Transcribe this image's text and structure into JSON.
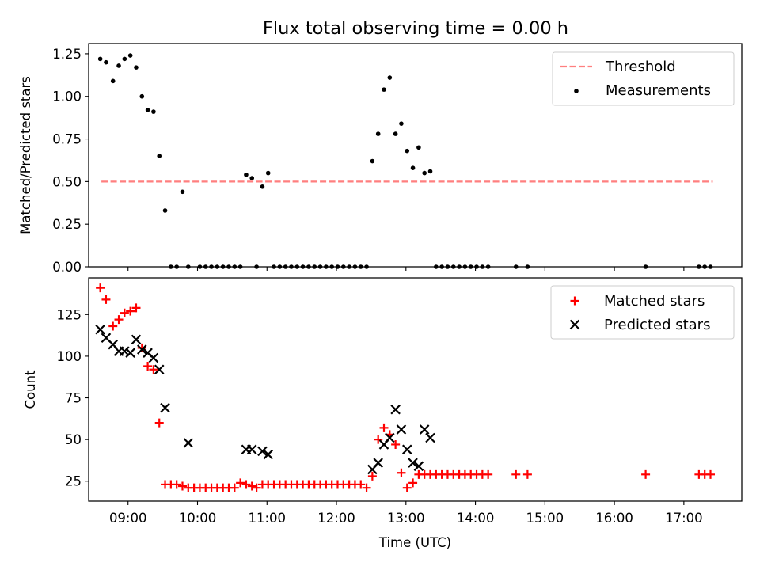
{
  "chart_data": [
    {
      "type": "scatter",
      "title": "Flux total observing time = 0.00 h",
      "xlabel": "",
      "ylabel": "Matched/Predicted stars",
      "xlim": [
        "08:26",
        "17:50"
      ],
      "ylim": [
        0,
        1.31
      ],
      "y_ticks": [
        "0.00",
        "0.25",
        "0.50",
        "0.75",
        "1.00",
        "1.25"
      ],
      "legend_position": "top-right",
      "grid": false,
      "threshold": {
        "name": "Threshold",
        "value": 0.5,
        "x_range": [
          "08:37",
          "17:25"
        ],
        "color": "#ff7f7f",
        "style": "dashed"
      },
      "series": [
        {
          "name": "Measurements",
          "color": "#000000",
          "marker": "dot",
          "x": [
            "08:36",
            "08:41",
            "08:47",
            "08:52",
            "08:57",
            "09:02",
            "09:07",
            "09:12",
            "09:17",
            "09:22",
            "09:27",
            "09:32",
            "09:37",
            "09:42",
            "09:47",
            "09:52",
            "10:02",
            "10:07",
            "10:12",
            "10:17",
            "10:22",
            "10:27",
            "10:32",
            "10:37",
            "10:42",
            "10:47",
            "10:51",
            "10:56",
            "11:01",
            "11:06",
            "11:11",
            "11:16",
            "11:21",
            "11:26",
            "11:31",
            "11:36",
            "11:41",
            "11:46",
            "11:51",
            "11:56",
            "12:01",
            "12:06",
            "12:11",
            "12:16",
            "12:21",
            "12:26",
            "12:31",
            "12:36",
            "12:41",
            "12:46",
            "12:51",
            "12:56",
            "13:01",
            "13:06",
            "13:11",
            "13:16",
            "13:21",
            "13:26",
            "13:31",
            "13:36",
            "13:41",
            "13:46",
            "13:51",
            "13:56",
            "14:01",
            "14:06",
            "14:11",
            "14:35",
            "14:45",
            "16:27",
            "17:13",
            "17:18",
            "17:23"
          ],
          "y": [
            1.22,
            1.2,
            1.09,
            1.18,
            1.22,
            1.24,
            1.17,
            1.0,
            0.92,
            0.91,
            0.65,
            0.33,
            0.0,
            0.0,
            0.44,
            0.0,
            0.0,
            0.0,
            0.0,
            0.0,
            0.0,
            0.0,
            0.0,
            0.0,
            0.54,
            0.52,
            0.0,
            0.47,
            0.55,
            0.0,
            0.0,
            0.0,
            0.0,
            0.0,
            0.0,
            0.0,
            0.0,
            0.0,
            0.0,
            0.0,
            0.0,
            0.0,
            0.0,
            0.0,
            0.0,
            0.0,
            0.62,
            0.78,
            1.04,
            1.11,
            0.78,
            0.84,
            0.68,
            0.58,
            0.7,
            0.55,
            0.56,
            0.0,
            0.0,
            0.0,
            0.0,
            0.0,
            0.0,
            0.0,
            0.0,
            0.0,
            0.0,
            0.0,
            0.0,
            0.0,
            0.0,
            0.0,
            0.0
          ]
        }
      ]
    },
    {
      "type": "scatter",
      "title": "",
      "xlabel": "Time (UTC)",
      "ylabel": "Count",
      "xlim": [
        "08:26",
        "17:50"
      ],
      "ylim": [
        13,
        147
      ],
      "y_ticks": [
        "25",
        "50",
        "75",
        "100",
        "125"
      ],
      "x_ticks": [
        "09:00",
        "10:00",
        "11:00",
        "12:00",
        "13:00",
        "14:00",
        "15:00",
        "16:00",
        "17:00"
      ],
      "legend_position": "top-right",
      "grid": false,
      "series": [
        {
          "name": "Matched stars",
          "color": "#ff0000",
          "marker": "plus",
          "x": [
            "08:36",
            "08:41",
            "08:47",
            "08:52",
            "08:57",
            "09:02",
            "09:07",
            "09:12",
            "09:17",
            "09:22",
            "09:27",
            "09:32",
            "09:37",
            "09:42",
            "09:47",
            "09:52",
            "09:57",
            "10:02",
            "10:07",
            "10:12",
            "10:17",
            "10:22",
            "10:27",
            "10:32",
            "10:37",
            "10:42",
            "10:47",
            "10:51",
            "10:56",
            "11:01",
            "11:06",
            "11:11",
            "11:16",
            "11:21",
            "11:26",
            "11:31",
            "11:36",
            "11:41",
            "11:46",
            "11:51",
            "11:56",
            "12:01",
            "12:06",
            "12:11",
            "12:16",
            "12:21",
            "12:26",
            "12:31",
            "12:36",
            "12:41",
            "12:46",
            "12:51",
            "12:56",
            "13:01",
            "13:06",
            "13:11",
            "13:16",
            "13:21",
            "13:26",
            "13:31",
            "13:36",
            "13:41",
            "13:46",
            "13:51",
            "13:56",
            "14:01",
            "14:06",
            "14:11",
            "14:35",
            "14:45",
            "16:27",
            "17:13",
            "17:18",
            "17:23"
          ],
          "y": [
            141,
            134,
            118,
            122,
            126,
            127,
            129,
            105,
            94,
            92,
            60,
            23,
            23,
            23,
            22,
            21,
            21,
            21,
            21,
            21,
            21,
            21,
            21,
            21,
            24,
            23,
            22,
            21,
            23,
            23,
            23,
            23,
            23,
            23,
            23,
            23,
            23,
            23,
            23,
            23,
            23,
            23,
            23,
            23,
            23,
            23,
            21,
            28,
            50,
            57,
            53,
            47,
            30,
            21,
            24,
            29,
            29,
            29,
            29,
            29,
            29,
            29,
            29,
            29,
            29,
            29,
            29,
            29,
            29,
            29,
            29,
            29,
            29,
            29
          ]
        },
        {
          "name": "Predicted stars",
          "color": "#000000",
          "marker": "x",
          "x": [
            "08:36",
            "08:41",
            "08:47",
            "08:52",
            "08:57",
            "09:02",
            "09:07",
            "09:12",
            "09:17",
            "09:22",
            "09:27",
            "09:32",
            "09:52",
            "10:42",
            "10:47",
            "10:56",
            "11:01",
            "12:31",
            "12:36",
            "12:41",
            "12:46",
            "12:51",
            "12:56",
            "13:01",
            "13:06",
            "13:11",
            "13:16",
            "13:21"
          ],
          "y": [
            116,
            111,
            107,
            103,
            103,
            102,
            110,
            104,
            102,
            99,
            92,
            69,
            48,
            44,
            44,
            43,
            41,
            32,
            36,
            47,
            51,
            68,
            56,
            44,
            36,
            34,
            56,
            51
          ]
        }
      ]
    }
  ]
}
